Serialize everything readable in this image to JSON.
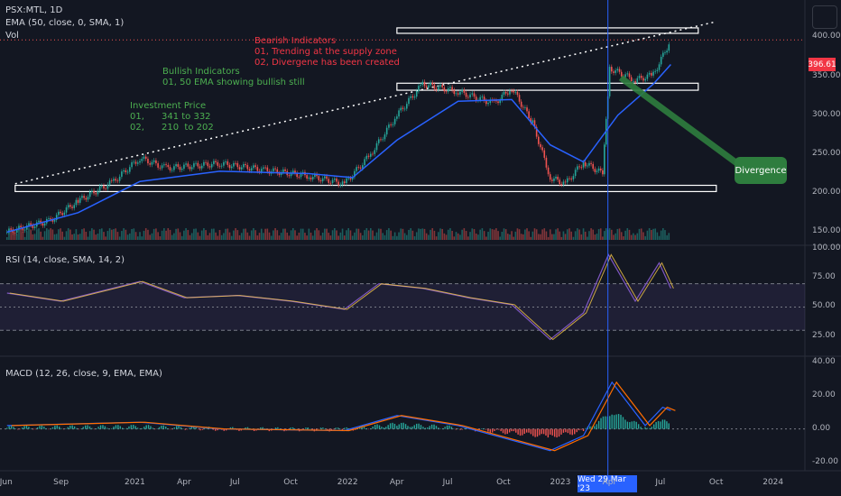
{
  "header": {
    "symbol": "PSX:MTL, 1D",
    "ema_label": "EMA (50, close, 0, SMA, 1)",
    "vol_label": "Vol",
    "rsi_label": "RSI (14, close, SMA, 14, 2)",
    "macd_label": "MACD (12, 26, close, 9, EMA, EMA)"
  },
  "annotations": {
    "bearish": "Bearish Indicators\n01, Trending at the supply zone\n02, Divergene has been created",
    "bullish": "Bullish Indicators\n01, 50 EMA showing bullish still",
    "investment": "Investment Price\n01,      341 to 332\n02,      210  to 202",
    "divergence": "Divergence"
  },
  "price_tag": "396.61",
  "date_tag": "Wed 29 Mar '23",
  "colors": {
    "background": "#131722",
    "up": "#26a69a",
    "down": "#ef5350",
    "ema": "#2962ff",
    "rsi": "#7e57c2",
    "rsi_signal": "#f7c948",
    "macd": "#2962ff",
    "macd_signal": "#ff6d00",
    "bear_text": "#f23645",
    "bull_text": "#4caf50"
  },
  "chart_data": [
    {
      "type": "candlestick",
      "title": "PSX:MTL, 1D",
      "x_ticks": [
        "Jun",
        "Sep",
        "2021",
        "Apr",
        "Jul",
        "Oct",
        "2022",
        "Apr",
        "Jul",
        "Oct",
        "2023",
        "Apr",
        "Jul",
        "Oct",
        "2024"
      ],
      "y_ticks": [
        150,
        200,
        250,
        300,
        350,
        400
      ],
      "ylim": [
        140,
        420
      ],
      "last_price": 396.61,
      "close_points": [
        {
          "x": "2020-06-01",
          "y": 150
        },
        {
          "x": "2020-08-15",
          "y": 165
        },
        {
          "x": "2020-10-01",
          "y": 190
        },
        {
          "x": "2020-12-01",
          "y": 215
        },
        {
          "x": "2021-01-15",
          "y": 245
        },
        {
          "x": "2021-03-01",
          "y": 232
        },
        {
          "x": "2021-06-01",
          "y": 238
        },
        {
          "x": "2021-08-15",
          "y": 230
        },
        {
          "x": "2021-11-01",
          "y": 222
        },
        {
          "x": "2022-01-01",
          "y": 212
        },
        {
          "x": "2022-02-15",
          "y": 250
        },
        {
          "x": "2022-04-01",
          "y": 300
        },
        {
          "x": "2022-05-15",
          "y": 340
        },
        {
          "x": "2022-07-15",
          "y": 330
        },
        {
          "x": "2022-09-15",
          "y": 315
        },
        {
          "x": "2022-10-15",
          "y": 335
        },
        {
          "x": "2022-11-20",
          "y": 290
        },
        {
          "x": "2022-12-20",
          "y": 220
        },
        {
          "x": "2023-01-15",
          "y": 212
        },
        {
          "x": "2023-02-15",
          "y": 240
        },
        {
          "x": "2023-03-20",
          "y": 225
        },
        {
          "x": "2023-04-01",
          "y": 360
        },
        {
          "x": "2023-05-15",
          "y": 345
        },
        {
          "x": "2023-06-15",
          "y": 352
        },
        {
          "x": "2023-07-15",
          "y": 396.61
        }
      ],
      "ema_points": [
        {
          "x": "2020-06-01",
          "y": 150
        },
        {
          "x": "2020-10-01",
          "y": 175
        },
        {
          "x": "2021-01-15",
          "y": 215
        },
        {
          "x": "2021-06-01",
          "y": 228
        },
        {
          "x": "2021-11-01",
          "y": 225
        },
        {
          "x": "2022-01-15",
          "y": 220
        },
        {
          "x": "2022-04-01",
          "y": 268
        },
        {
          "x": "2022-07-15",
          "y": 318
        },
        {
          "x": "2022-10-15",
          "y": 320
        },
        {
          "x": "2022-12-20",
          "y": 262
        },
        {
          "x": "2023-02-15",
          "y": 240
        },
        {
          "x": "2023-04-15",
          "y": 300
        },
        {
          "x": "2023-06-15",
          "y": 340
        },
        {
          "x": "2023-07-15",
          "y": 365
        }
      ],
      "zones": [
        {
          "from": "2022-04-01",
          "to": "2023-08-31",
          "low": 332,
          "high": 341
        },
        {
          "from": "2020-06-15",
          "to": "2023-10-01",
          "low": 202,
          "high": 210
        },
        {
          "from": "2022-04-01",
          "to": "2023-08-31",
          "low": 405,
          "high": 412
        }
      ],
      "trendline": {
        "from": {
          "x": "2020-06-15",
          "y": 212
        },
        "to": {
          "x": "2023-10-01",
          "y": 420
        }
      },
      "vertical_marker": "2023-03-29"
    },
    {
      "type": "line",
      "title": "RSI (14, close, SMA, 14, 2)",
      "y_ticks": [
        25,
        50,
        75,
        100
      ],
      "ylim": [
        10,
        100
      ],
      "bands": [
        30,
        70
      ],
      "points": [
        {
          "x": "2020-06-01",
          "y": 62
        },
        {
          "x": "2020-09-01",
          "y": 55
        },
        {
          "x": "2021-01-15",
          "y": 72
        },
        {
          "x": "2021-04-01",
          "y": 58
        },
        {
          "x": "2021-07-01",
          "y": 60
        },
        {
          "x": "2021-10-01",
          "y": 55
        },
        {
          "x": "2022-01-01",
          "y": 48
        },
        {
          "x": "2022-03-01",
          "y": 70
        },
        {
          "x": "2022-05-15",
          "y": 66
        },
        {
          "x": "2022-08-01",
          "y": 58
        },
        {
          "x": "2022-10-15",
          "y": 52
        },
        {
          "x": "2022-12-20",
          "y": 22
        },
        {
          "x": "2023-02-15",
          "y": 45
        },
        {
          "x": "2023-03-30",
          "y": 95
        },
        {
          "x": "2023-05-15",
          "y": 55
        },
        {
          "x": "2023-06-25",
          "y": 88
        },
        {
          "x": "2023-07-15",
          "y": 66
        }
      ]
    },
    {
      "type": "line",
      "title": "MACD (12, 26, close, 9, EMA, EMA)",
      "y_ticks": [
        -20,
        0,
        20,
        40
      ],
      "ylim": [
        -24,
        42
      ],
      "series": [
        {
          "name": "MACD",
          "points": [
            {
              "x": "2020-06-01",
              "y": 2
            },
            {
              "x": "2021-01-15",
              "y": 4
            },
            {
              "x": "2021-06-01",
              "y": 0
            },
            {
              "x": "2022-01-01",
              "y": -1
            },
            {
              "x": "2022-04-01",
              "y": 8
            },
            {
              "x": "2022-07-15",
              "y": 2
            },
            {
              "x": "2022-12-20",
              "y": -13
            },
            {
              "x": "2023-02-15",
              "y": -4
            },
            {
              "x": "2023-04-05",
              "y": 28
            },
            {
              "x": "2023-06-01",
              "y": 2
            },
            {
              "x": "2023-07-01",
              "y": 13
            },
            {
              "x": "2023-07-15",
              "y": 11
            }
          ]
        }
      ]
    }
  ]
}
